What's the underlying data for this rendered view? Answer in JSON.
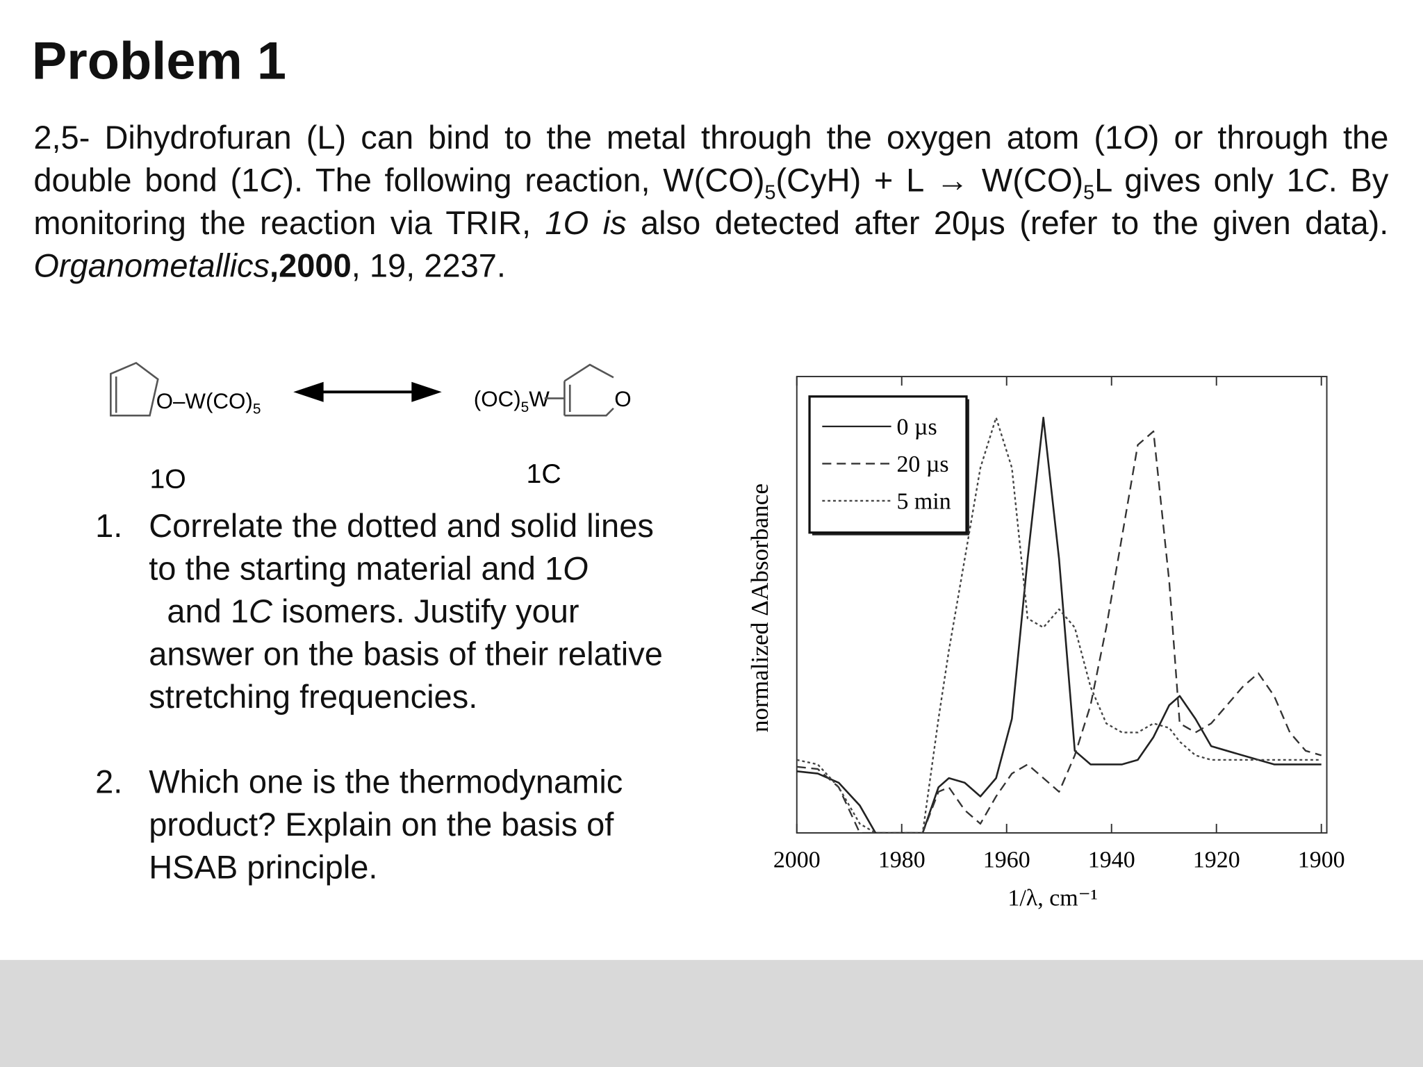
{
  "header": {
    "title": "Problem 1"
  },
  "intro": [
    "2,5- Dihydrofuran (L) can bind to the metal through the oxygen atom (1",
    "O",
    ") or through the double bond (1",
    "C",
    ").  The following reaction, W(CO)",
    "5",
    "(CyH) + L → W(CO)",
    "5",
    "L gives only 1",
    "C",
    ". By monitoring the reaction via TRIR, ",
    "1O is",
    " also detected after 20μs (refer to the given data). ",
    "Organometallics",
    ",2000",
    ", 19, 2237."
  ],
  "structures": {
    "left": {
      "formula": [
        "O–W(CO)",
        "5"
      ],
      "label": "1O"
    },
    "right": {
      "formula": [
        "(OC)",
        "5",
        "W"
      ],
      "atom": "O",
      "label": "1C"
    }
  },
  "questions": [
    {
      "number": "1.",
      "text": [
        "Correlate the dotted and solid lines to the starting material and 1",
        "O",
        "  and 1",
        "C",
        " isomers. Justify your answer on the basis of their relative stretching frequencies."
      ]
    },
    {
      "number": "2.",
      "text": [
        " Which one is the thermodynamic product? Explain on the basis of HSAB principle."
      ]
    }
  ],
  "chart_data": {
    "type": "line",
    "xlabel": "1/λ, cm⁻¹",
    "ylabel": "normalized ΔAbsorbance",
    "x": [
      2000,
      1996,
      1992,
      1988,
      1985,
      1982,
      1979,
      1976,
      1973,
      1971,
      1968,
      1965,
      1962,
      1959,
      1956,
      1953,
      1950,
      1947,
      1944,
      1941,
      1938,
      1935,
      1932,
      1929,
      1927,
      1924,
      1921,
      1918,
      1915,
      1912,
      1909,
      1906,
      1903,
      1900
    ],
    "xlim": [
      2000,
      1900
    ],
    "xticks": [
      2000,
      1980,
      1960,
      1940,
      1920,
      1900
    ],
    "ylim": [
      0,
      1
    ],
    "legend": "upper left",
    "series": [
      {
        "name": "0 µs",
        "color": "#222222",
        "style": "solid",
        "values": [
          0.135,
          0.13,
          0.11,
          0.06,
          0,
          0,
          0,
          0,
          0.1,
          0.12,
          0.11,
          0.08,
          0.12,
          0.25,
          0.6,
          0.91,
          0.6,
          0.18,
          0.15,
          0.15,
          0.15,
          0.16,
          0.21,
          0.28,
          0.3,
          0.25,
          0.19,
          0.18,
          0.17,
          0.16,
          0.15,
          0.15,
          0.15,
          0.15
        ]
      },
      {
        "name": "20 µs",
        "color": "#333333",
        "style": "dashed",
        "values": [
          0.145,
          0.14,
          0.1,
          0,
          0,
          0,
          0,
          0,
          0.09,
          0.1,
          0.05,
          0.02,
          0.08,
          0.13,
          0.15,
          0.12,
          0.09,
          0.17,
          0.28,
          0.45,
          0.65,
          0.85,
          0.88,
          0.55,
          0.24,
          0.22,
          0.24,
          0.28,
          0.32,
          0.35,
          0.3,
          0.22,
          0.18,
          0.17
        ]
      },
      {
        "name": "5 min",
        "color": "#444444",
        "style": "dotted",
        "values": [
          0.16,
          0.15,
          0.1,
          0.02,
          0,
          0,
          0,
          0,
          0.25,
          0.4,
          0.6,
          0.8,
          0.91,
          0.8,
          0.47,
          0.45,
          0.49,
          0.45,
          0.32,
          0.24,
          0.22,
          0.22,
          0.24,
          0.23,
          0.2,
          0.17,
          0.16,
          0.16,
          0.16,
          0.16,
          0.16,
          0.16,
          0.16,
          0.16
        ]
      }
    ]
  }
}
